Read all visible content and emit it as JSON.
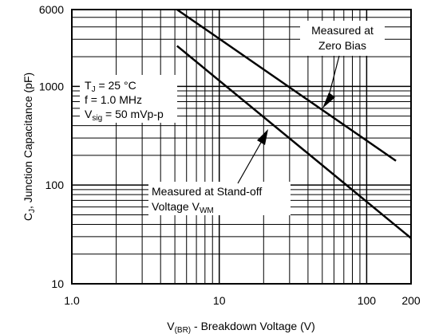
{
  "chart_data": {
    "type": "line",
    "y_label": {
      "main": "C",
      "sub": "J",
      "rest": ", Junction Capacitance (pF)"
    },
    "x_label": {
      "main": "V",
      "sub": "(BR)",
      "rest": " - Breakdown Voltage (V)"
    },
    "xscale": "log",
    "yscale": "log",
    "xlim": [
      1,
      200
    ],
    "ylim": [
      10,
      6000
    ],
    "xticks": [
      {
        "value": 1,
        "label": "1.0"
      },
      10,
      100,
      200
    ],
    "yticks": [
      10,
      100,
      1000,
      6000
    ],
    "x_minor_grid": [
      2,
      3,
      4,
      5,
      6,
      7,
      8,
      9,
      20,
      30,
      40,
      50,
      60,
      70,
      80,
      90
    ],
    "y_minor_grid": [
      20,
      30,
      40,
      50,
      60,
      70,
      80,
      90,
      200,
      300,
      400,
      500,
      600,
      700,
      800,
      900,
      2000,
      3000,
      4000,
      5000
    ],
    "grid": true,
    "series": [
      {
        "color": "#000000",
        "x": [
          5.17,
          158
        ],
        "values": [
          6000,
          176
        ]
      },
      {
        "color": "#000000",
        "x": [
          5.17,
          200
        ],
        "values": [
          2570,
          29
        ]
      }
    ],
    "conditions": [
      {
        "main": "T",
        "sub": "J",
        "rest": " = 25 °C"
      },
      {
        "main": "f = 1.0 MHz",
        "sub": "",
        "rest": ""
      },
      {
        "main": "V",
        "sub": "sig",
        "rest": " = 50 mVp-p"
      }
    ],
    "annotations": [
      {
        "lines": [
          "Measured at",
          "Zero Bias"
        ]
      },
      {
        "lines": [
          "Measured at Stand-off"
        ],
        "last": {
          "main": "Voltage V",
          "sub": "WM"
        }
      }
    ]
  }
}
